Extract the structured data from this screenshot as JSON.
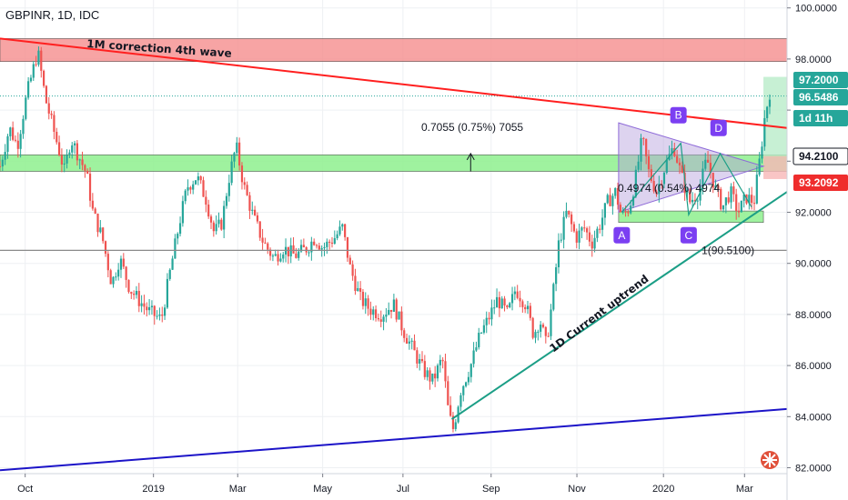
{
  "header": {
    "title": "GBPINR, 1D, IDC"
  },
  "chart_data": {
    "type": "candlestick",
    "symbol": "GBPINR",
    "interval": "1D",
    "source": "IDC",
    "ylim": [
      81.8,
      101.0
    ],
    "y_ticks": [
      82,
      84,
      86,
      88,
      90,
      92,
      94,
      96,
      98,
      100
    ],
    "y_tick_labels": [
      "82.0000",
      "84.0000",
      "86.0000",
      "88.0000",
      "90.0000",
      "92.0000",
      "94.0000",
      "",
      "98.0000",
      "100.0000"
    ],
    "x_labels": [
      {
        "label": "Oct",
        "pos": 0.032
      },
      {
        "label": "2019",
        "pos": 0.195
      },
      {
        "label": "Mar",
        "pos": 0.302
      },
      {
        "label": "May",
        "pos": 0.41
      },
      {
        "label": "Jul",
        "pos": 0.512
      },
      {
        "label": "Sep",
        "pos": 0.624
      },
      {
        "label": "Nov",
        "pos": 0.733
      },
      {
        "label": "2020",
        "pos": 0.843
      },
      {
        "label": "Mar",
        "pos": 0.946
      }
    ],
    "price_path": [
      [
        0.0,
        93.8
      ],
      [
        0.012,
        95.3
      ],
      [
        0.022,
        94.6
      ],
      [
        0.034,
        96.6
      ],
      [
        0.048,
        98.3
      ],
      [
        0.058,
        96.4
      ],
      [
        0.07,
        95.0
      ],
      [
        0.082,
        93.6
      ],
      [
        0.09,
        94.9
      ],
      [
        0.1,
        94.2
      ],
      [
        0.11,
        93.5
      ],
      [
        0.118,
        92.0
      ],
      [
        0.13,
        91.0
      ],
      [
        0.142,
        89.2
      ],
      [
        0.152,
        90.2
      ],
      [
        0.165,
        89.0
      ],
      [
        0.178,
        88.5
      ],
      [
        0.19,
        88.1
      ],
      [
        0.205,
        87.8
      ],
      [
        0.215,
        89.5
      ],
      [
        0.228,
        91.6
      ],
      [
        0.238,
        93.0
      ],
      [
        0.25,
        93.4
      ],
      [
        0.262,
        92.5
      ],
      [
        0.272,
        91.2
      ],
      [
        0.282,
        91.6
      ],
      [
        0.29,
        93.2
      ],
      [
        0.3,
        94.6
      ],
      [
        0.31,
        93.0
      ],
      [
        0.322,
        91.8
      ],
      [
        0.335,
        90.8
      ],
      [
        0.348,
        90.2
      ],
      [
        0.36,
        90.6
      ],
      [
        0.375,
        90.3
      ],
      [
        0.39,
        90.6
      ],
      [
        0.4,
        91.0
      ],
      [
        0.41,
        90.6
      ],
      [
        0.425,
        91.0
      ],
      [
        0.435,
        91.4
      ],
      [
        0.445,
        89.8
      ],
      [
        0.458,
        88.6
      ],
      [
        0.47,
        88.2
      ],
      [
        0.485,
        88.0
      ],
      [
        0.5,
        88.4
      ],
      [
        0.512,
        87.4
      ],
      [
        0.525,
        86.6
      ],
      [
        0.538,
        85.8
      ],
      [
        0.55,
        85.4
      ],
      [
        0.562,
        86.3
      ],
      [
        0.57,
        84.1
      ],
      [
        0.576,
        83.5
      ],
      [
        0.585,
        85.0
      ],
      [
        0.598,
        86.0
      ],
      [
        0.61,
        87.2
      ],
      [
        0.62,
        87.8
      ],
      [
        0.632,
        88.6
      ],
      [
        0.645,
        88.0
      ],
      [
        0.655,
        89.0
      ],
      [
        0.668,
        88.4
      ],
      [
        0.678,
        87.2
      ],
      [
        0.686,
        87.8
      ],
      [
        0.694,
        86.8
      ],
      [
        0.702,
        88.6
      ],
      [
        0.71,
        90.8
      ],
      [
        0.72,
        92.0
      ],
      [
        0.732,
        91.0
      ],
      [
        0.742,
        91.4
      ],
      [
        0.752,
        90.8
      ],
      [
        0.762,
        91.5
      ],
      [
        0.772,
        92.4
      ],
      [
        0.782,
        92.8
      ],
      [
        0.79,
        91.8
      ],
      [
        0.8,
        92.2
      ],
      [
        0.808,
        93.4
      ],
      [
        0.816,
        94.9
      ],
      [
        0.824,
        93.6
      ],
      [
        0.834,
        92.8
      ],
      [
        0.845,
        93.8
      ],
      [
        0.856,
        94.6
      ],
      [
        0.866,
        93.4
      ],
      [
        0.876,
        92.4
      ],
      [
        0.888,
        92.8
      ],
      [
        0.898,
        94.1
      ],
      [
        0.908,
        93.0
      ],
      [
        0.918,
        92.2
      ],
      [
        0.928,
        92.8
      ],
      [
        0.938,
        92.0
      ],
      [
        0.948,
        92.6
      ],
      [
        0.958,
        92.4
      ],
      [
        0.966,
        94.2
      ],
      [
        0.972,
        95.8
      ],
      [
        0.978,
        96.7
      ]
    ],
    "last_price": 96.5486,
    "price_tags": [
      {
        "label": "97.2000",
        "value": 97.2,
        "bg": "#26a69a",
        "fg": "#ffffff"
      },
      {
        "label": "96.5486",
        "value": 96.5486,
        "bg": "#26a69a",
        "fg": "#ffffff"
      },
      {
        "label": "1d 11h",
        "value": 95.8,
        "bg": "#26a69a",
        "fg": "#ffffff"
      },
      {
        "label": "94.2100",
        "value": 94.21,
        "bg": "#ffffff",
        "fg": "#131722",
        "border": "#131722"
      },
      {
        "label": "93.2092",
        "value": 93.2092,
        "bg": "#ef2d2d",
        "fg": "#ffffff"
      }
    ],
    "horizontal_line": {
      "value": 90.51,
      "label": "1(90.5100)"
    },
    "annotations": {
      "wave": "1M correction 4th wave",
      "uptrend": "1D Current uptrend",
      "measure_1": "0.7055 (0.75%) 7055",
      "measure_2": "0.4974 (0.54%) 4974",
      "points": [
        "A",
        "B",
        "C",
        "D"
      ]
    },
    "colors": {
      "up": "#26a69a",
      "down": "#ef5350",
      "red_line": "#ff1f1f",
      "blue_line": "#1c14c8",
      "uptrend_line": "#1b9e86",
      "red_zone": "#f58d8d",
      "green_zone": "#8ef08e",
      "triangle": "#b39ddb",
      "wave_label_bg": "#7b3ff2"
    }
  }
}
